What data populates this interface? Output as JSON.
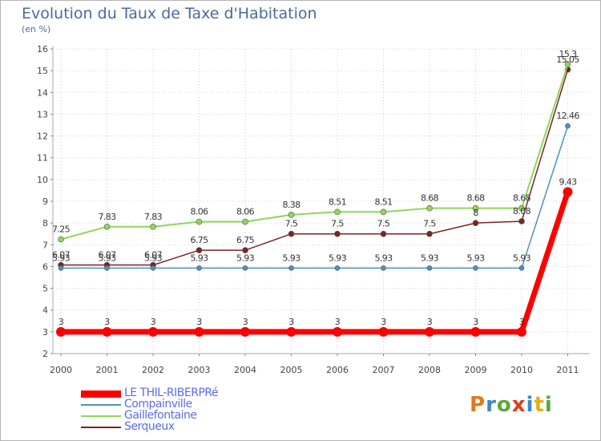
{
  "header": {
    "title": "Evolution du Taux de Taxe d'Habitation",
    "subtitle": "(en %)"
  },
  "logo": {
    "text": "Proxiti",
    "colors": [
      "#e07b1a",
      "#3e86c8",
      "#5aa83c",
      "#e03c1a",
      "#3e86c8",
      "#e0b21a",
      "#5aa83c"
    ]
  },
  "chart_data": {
    "type": "line",
    "x": [
      "2000",
      "2001",
      "2002",
      "2003",
      "2004",
      "2005",
      "2006",
      "2007",
      "2008",
      "2009",
      "2010",
      "2011"
    ],
    "ylim": [
      2,
      16
    ],
    "yticks": [
      "2",
      "3",
      "4",
      "5",
      "6",
      "7",
      "8",
      "9",
      "10",
      "11",
      "12",
      "13",
      "14",
      "15",
      "16"
    ],
    "grid": true,
    "legend_position": "bottom-left",
    "series": [
      {
        "name": "LE THIL-RIBERPRé",
        "color": "#ff0000",
        "values": [
          3,
          3,
          3,
          3,
          3,
          3,
          3,
          3,
          3,
          3,
          3,
          9.43
        ],
        "labels": [
          "3",
          "3",
          "3",
          "3",
          "3",
          "3",
          "3",
          "3",
          "3",
          "3",
          "3",
          "9.43"
        ]
      },
      {
        "name": "Compainville",
        "color": "#4f8fc6",
        "values": [
          5.93,
          5.93,
          5.93,
          5.93,
          5.93,
          5.93,
          5.93,
          5.93,
          5.93,
          5.93,
          5.93,
          12.46
        ],
        "labels": [
          "5.93",
          "5.93",
          "5.93",
          "5.93",
          "5.93",
          "5.93",
          "5.93",
          "5.93",
          "5.93",
          "5.93",
          "5.93",
          "12.46"
        ]
      },
      {
        "name": "Gaillefontaine",
        "color": "#8fd65a",
        "values": [
          7.25,
          7.83,
          7.83,
          8.06,
          8.06,
          8.38,
          8.51,
          8.51,
          8.68,
          8.68,
          8.68,
          15.3
        ],
        "labels": [
          "7.25",
          "7.83",
          "7.83",
          "8.06",
          "8.06",
          "8.38",
          "8.51",
          "8.51",
          "8.68",
          "8.68",
          "8.68",
          "15.3"
        ]
      },
      {
        "name": "Serqueux",
        "color": "#7a2424",
        "values": [
          6.07,
          6.07,
          6.07,
          6.75,
          6.75,
          7.5,
          7.5,
          7.5,
          7.5,
          8,
          8.08,
          15.05
        ],
        "labels": [
          "6.07",
          "6.07",
          "6.07",
          "6.75",
          "6.75",
          "7.5",
          "7.5",
          "7.5",
          "7.5",
          "8",
          "8.08",
          "15.05"
        ]
      }
    ]
  }
}
